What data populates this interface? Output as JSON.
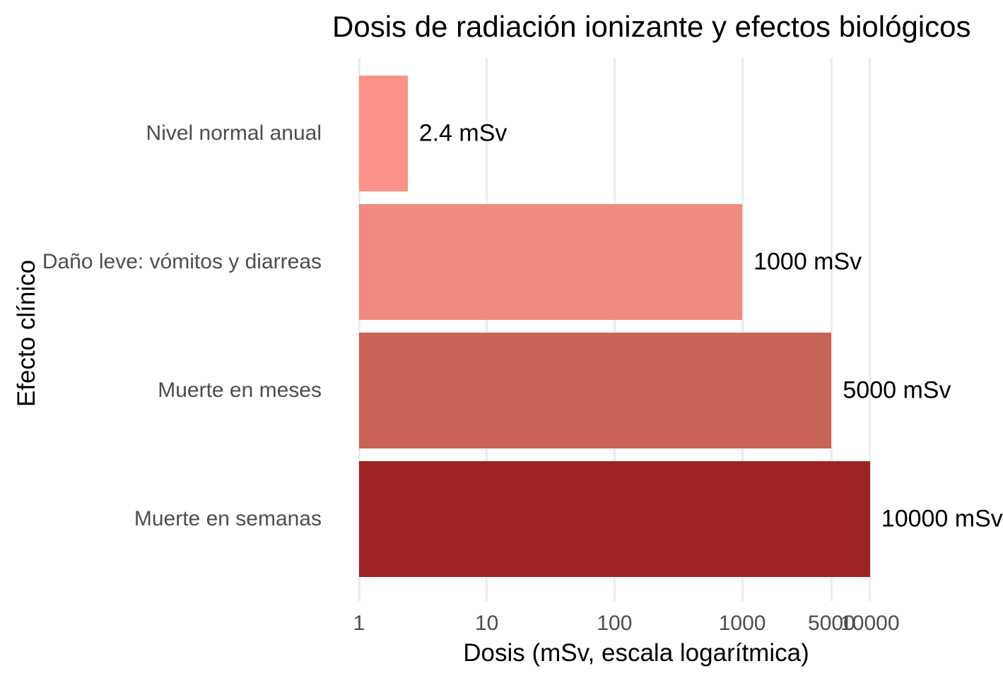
{
  "chart_data": {
    "type": "bar",
    "orientation": "horizontal",
    "x_scale": "log10",
    "title": "Dosis de radiación ionizante y efectos biológicos",
    "xlabel": "Dosis (mSv, escala logarítmica)",
    "ylabel": "Efecto clínico",
    "categories": [
      "Nivel normal anual",
      "Daño leve: vómitos y diarreas",
      "Muerte en meses",
      "Muerte en semanas"
    ],
    "values": [
      2.4,
      1000,
      5000,
      10000
    ],
    "bar_labels": [
      "2.4 mSv",
      "1000 mSv",
      "5000 mSv",
      "10000 mSv"
    ],
    "bar_colors": [
      "#FA9287",
      "#F0897E",
      "#C96355",
      "#9E2423"
    ],
    "x_ticks": [
      1,
      10,
      100,
      1000,
      5000,
      10000
    ],
    "x_tick_labels": [
      "1",
      "10",
      "100",
      "1000",
      "5000",
      "10000"
    ],
    "xlim": [
      1,
      10000
    ],
    "grid": "vertical-major-only",
    "legend": "none",
    "colors": {
      "background": "#FFFFFF",
      "grid": "#EBEBEB",
      "axis_text": "#4D4D4D",
      "text": "#000000"
    }
  }
}
